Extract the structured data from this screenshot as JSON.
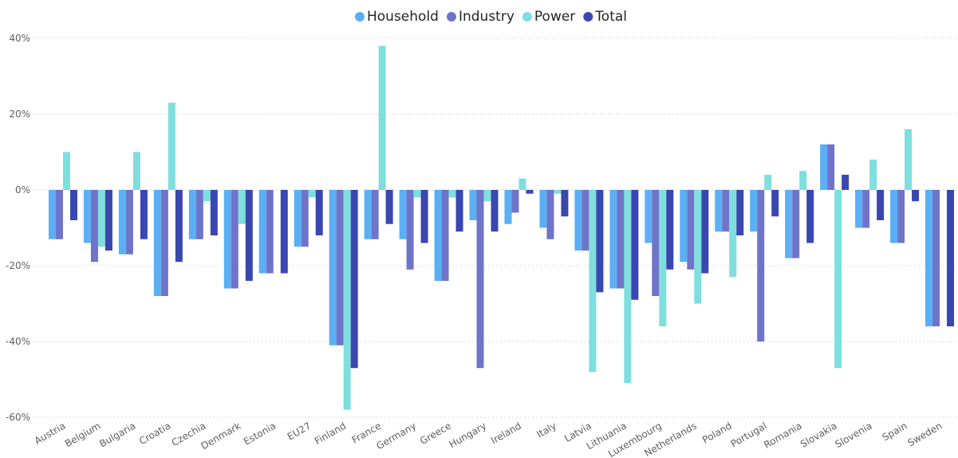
{
  "chart_data": {
    "type": "bar",
    "categories": [
      "Austria",
      "Belgium",
      "Bulgaria",
      "Croatia",
      "Czechia",
      "Denmark",
      "Estonia",
      "EU27",
      "Finland",
      "France",
      "Germany",
      "Greece",
      "Hungary",
      "Ireland",
      "Italy",
      "Latvia",
      "Lithuania",
      "Luxembourg",
      "Netherlands",
      "Poland",
      "Portugal",
      "Romania",
      "Slovakia",
      "Slovenia",
      "Spain",
      "Sweden"
    ],
    "series": [
      {
        "name": "Household",
        "color": "#5aaff5",
        "values": [
          -13,
          -14,
          -17,
          -28,
          -13,
          -26,
          -22,
          -15,
          -41,
          -13,
          -13,
          -24,
          -8,
          -9,
          -10,
          -16,
          -26,
          -14,
          -19,
          -11,
          -11,
          -18,
          12,
          -10,
          -14,
          -36
        ]
      },
      {
        "name": "Industry",
        "color": "#6f74c8",
        "values": [
          -13,
          -19,
          -17,
          -28,
          -13,
          -26,
          -22,
          -15,
          -41,
          -13,
          -21,
          -24,
          -47,
          -6,
          -13,
          -16,
          -26,
          -28,
          -21,
          -11,
          -40,
          -18,
          12,
          -10,
          -14,
          -36
        ]
      },
      {
        "name": "Power",
        "color": "#7fdede",
        "values": [
          10,
          -15,
          10,
          23,
          -3,
          -9,
          0,
          -2,
          -58,
          38,
          -2,
          -2,
          -3,
          3,
          -1,
          -48,
          -51,
          -36,
          -30,
          -23,
          4,
          5,
          -47,
          8,
          16,
          0
        ]
      },
      {
        "name": "Total",
        "color": "#3a47b0",
        "values": [
          -8,
          -16,
          -13,
          -19,
          -12,
          -24,
          -22,
          -12,
          -47,
          -9,
          -14,
          -11,
          -11,
          -1,
          -7,
          -27,
          -29,
          -21,
          -22,
          -12,
          -7,
          -14,
          4,
          -8,
          -3,
          -36
        ]
      }
    ],
    "ylim": [
      -60,
      40
    ],
    "yticks": [
      {
        "value": -60,
        "label": "-60%"
      },
      {
        "value": -40,
        "label": "-40%"
      },
      {
        "value": -20,
        "label": "-20%"
      },
      {
        "value": 0,
        "label": "0%"
      },
      {
        "value": 20,
        "label": "20%"
      },
      {
        "value": 40,
        "label": "40%"
      }
    ],
    "grid": true,
    "legend": "top"
  }
}
